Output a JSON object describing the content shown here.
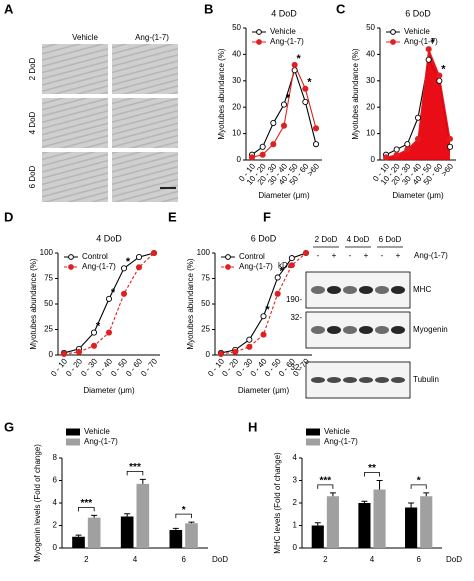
{
  "micrographs": {
    "panel": "A",
    "columns": [
      "Vehicle",
      "Ang-(1-7)"
    ],
    "rows": [
      "2 DoD",
      "4 DoD",
      "6 DoD"
    ]
  },
  "blot": {
    "panel": "F",
    "lanes": [
      "2 DoD",
      "4 DoD",
      "6 DoD"
    ],
    "treatment_signs": [
      "-",
      "+",
      "-",
      "+",
      "-",
      "+"
    ],
    "treatment": "Ang-(1-7)",
    "unit": "kDa",
    "markers": [
      "190-",
      "32-",
      "32-"
    ],
    "proteins": [
      "MHC",
      "Myogenin",
      "Tubulin"
    ]
  },
  "chart_data": [
    {
      "panel": "B",
      "type": "line",
      "title": "4 DoD",
      "xlabel": "Diameter (μm)",
      "ylabel": "Myotubes abundance (%)",
      "categories": [
        "0 - 10",
        "10 - 20",
        "20 - 30",
        "30 - 40",
        "40 - 50",
        "50 - 60",
        ">60"
      ],
      "ylim": [
        0,
        50
      ],
      "yticks": [
        0,
        10,
        20,
        30,
        40,
        50
      ],
      "series": [
        {
          "name": "Vehicle",
          "color": "#000000",
          "marker_fill": "#ffffff",
          "values": [
            2,
            5,
            14,
            21,
            34,
            22,
            6
          ]
        },
        {
          "name": "Ang-(1-7)",
          "color": "#e02020",
          "marker_fill": "#e02020",
          "values": [
            1,
            2,
            6,
            13,
            36,
            27,
            12
          ]
        }
      ],
      "significance": [
        null,
        null,
        null,
        "*",
        "*",
        "*",
        null
      ]
    },
    {
      "panel": "C",
      "type": "line",
      "title": "6 DoD",
      "xlabel": "Diameter (μm)",
      "ylabel": "Myotubes abundance (%)",
      "categories": [
        "0 - 10",
        "10 - 20",
        "20 - 30",
        "30 - 40",
        "40 - 50",
        "50 - 60",
        ">60"
      ],
      "ylim": [
        0,
        50
      ],
      "yticks": [
        0,
        10,
        20,
        30,
        40,
        50
      ],
      "series": [
        {
          "name": "Vehicle",
          "color": "#000000",
          "marker_fill": "#ffffff",
          "values": [
            2,
            4,
            6,
            16,
            38,
            30,
            5
          ]
        },
        {
          "name": "Ang-(1-7)",
          "color": "#e02020",
          "marker_fill": "#e02020",
          "fill": "#e8000b",
          "values": [
            1,
            2,
            4,
            8,
            42,
            32,
            8
          ]
        }
      ],
      "significance": [
        null,
        null,
        null,
        null,
        "*",
        "*",
        null
      ]
    },
    {
      "panel": "D",
      "type": "line",
      "title": "4 DoD",
      "xlabel": "Diameter (μm)",
      "ylabel": "Myotubes abundance (%)",
      "categories": [
        "0 - 10",
        "0 - 20",
        "0 - 30",
        "0 - 40",
        "0 - 50",
        "0 - 60",
        "0 - 70"
      ],
      "ylim": [
        0,
        100
      ],
      "yticks": [
        0,
        25,
        50,
        75,
        100
      ],
      "series": [
        {
          "name": "Control",
          "color": "#000000",
          "marker_fill": "#ffffff",
          "values": [
            2,
            6,
            22,
            55,
            85,
            96,
            100
          ]
        },
        {
          "name": "Ang-(1-7)",
          "color": "#e02020",
          "marker_fill": "#e02020",
          "dashed": true,
          "values": [
            1,
            3,
            9,
            22,
            60,
            86,
            100
          ]
        }
      ],
      "significance": [
        null,
        null,
        "*",
        "*",
        "*",
        null,
        null
      ]
    },
    {
      "panel": "E",
      "type": "line",
      "title": "6 DoD",
      "xlabel": "Diameter (μm)",
      "ylabel": "Myotubes abundance (%)",
      "categories": [
        "0 - 10",
        "0 - 20",
        "0 - 30",
        "0 - 40",
        "0 - 50",
        "0 - 60",
        "0 - 70"
      ],
      "ylim": [
        0,
        100
      ],
      "yticks": [
        0,
        25,
        50,
        75,
        100
      ],
      "series": [
        {
          "name": "Control",
          "color": "#000000",
          "marker_fill": "#ffffff",
          "values": [
            2,
            5,
            15,
            38,
            76,
            95,
            100
          ]
        },
        {
          "name": "Ang-(1-7)",
          "color": "#e02020",
          "marker_fill": "#e02020",
          "dashed": true,
          "values": [
            1,
            3,
            8,
            20,
            60,
            88,
            100
          ]
        }
      ],
      "significance": [
        null,
        null,
        null,
        "*",
        "*",
        null,
        null
      ]
    },
    {
      "panel": "G",
      "type": "bar",
      "ylabel": "Myogenin levels (Fold of change)",
      "xlabel": "DoD",
      "categories": [
        "2",
        "4",
        "6"
      ],
      "ylim": [
        0,
        8
      ],
      "yticks": [
        0,
        2,
        4,
        6,
        8
      ],
      "series": [
        {
          "name": "Vehicle",
          "color": "#000000",
          "values": [
            1,
            2.8,
            1.6
          ],
          "errors": [
            0.15,
            0.25,
            0.15
          ]
        },
        {
          "name": "Ang-(1-7)",
          "color": "#a0a0a0",
          "values": [
            2.7,
            5.7,
            2.2
          ],
          "errors": [
            0.2,
            0.4,
            0.1
          ]
        }
      ],
      "significance": [
        "***",
        "***",
        "*"
      ]
    },
    {
      "panel": "H",
      "type": "bar",
      "ylabel": "MHC levels (Fold of change)",
      "xlabel": "DoD",
      "categories": [
        "2",
        "4",
        "6"
      ],
      "ylim": [
        0,
        4
      ],
      "yticks": [
        0,
        1,
        2,
        3,
        4
      ],
      "series": [
        {
          "name": "Vehicle",
          "color": "#000000",
          "values": [
            1,
            2,
            1.8
          ],
          "errors": [
            0.12,
            0.08,
            0.2
          ]
        },
        {
          "name": "Ang-(1-7)",
          "color": "#a0a0a0",
          "values": [
            2.3,
            2.6,
            2.3
          ],
          "errors": [
            0.15,
            0.4,
            0.15
          ]
        }
      ],
      "significance": [
        "***",
        "**",
        "*"
      ]
    }
  ]
}
